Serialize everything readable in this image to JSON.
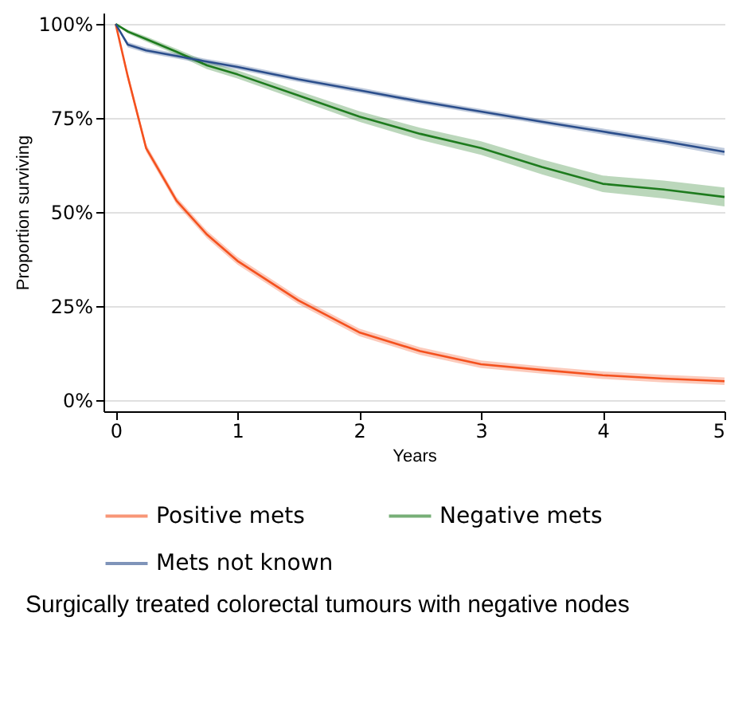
{
  "chart_data": {
    "type": "line",
    "xlabel": "Years",
    "ylabel": "Proportion surviving",
    "x": [
      0,
      0.1,
      0.25,
      0.5,
      0.75,
      1,
      1.5,
      2,
      2.5,
      3,
      3.5,
      4,
      4.5,
      5
    ],
    "series": [
      {
        "name": "Positive mets",
        "color": "#f4511e",
        "values": [
          100,
          86,
          67,
          53,
          44,
          37,
          26.5,
          18,
          13,
          9.5,
          8,
          6.6,
          5.7,
          5
        ],
        "lower": [
          100,
          85,
          66,
          52,
          43,
          36,
          25.5,
          17,
          12,
          8.5,
          7,
          5.6,
          4.7,
          4
        ],
        "upper": [
          100,
          87,
          68,
          54,
          45,
          38,
          27.5,
          19,
          14,
          10.5,
          9,
          7.6,
          6.7,
          6
        ]
      },
      {
        "name": "Negative mets",
        "color": "#1e7b1e",
        "values": [
          100,
          98,
          96,
          92.6,
          89,
          86.6,
          81,
          75.4,
          70.8,
          67,
          62,
          57.5,
          56,
          54
        ],
        "lower": [
          100,
          97.5,
          95.3,
          91.8,
          88,
          85.5,
          79.8,
          74,
          69.2,
          65.2,
          60,
          55.3,
          53.6,
          51.5
        ],
        "upper": [
          100,
          98.5,
          96.7,
          93.4,
          90,
          87.7,
          82.2,
          76.8,
          72.4,
          68.8,
          64,
          59.7,
          58.4,
          56.5
        ]
      },
      {
        "name": "Mets not known",
        "color": "#2b4e8c",
        "values": [
          100,
          94.5,
          93,
          91.5,
          90,
          88.6,
          85.3,
          82.4,
          79.4,
          76.7,
          74,
          71.4,
          68.8,
          66
        ],
        "lower": [
          100,
          93.8,
          92.3,
          90.8,
          89.3,
          87.9,
          84.6,
          81.7,
          78.7,
          76,
          73.3,
          70.6,
          68,
          65
        ],
        "upper": [
          100,
          95.2,
          93.7,
          92.2,
          90.7,
          89.3,
          86,
          83.1,
          80.1,
          77.4,
          74.7,
          72.2,
          69.6,
          67
        ]
      }
    ],
    "xlim": [
      -0.1,
      5
    ],
    "ylim": [
      -3,
      103
    ],
    "xticks": [
      0,
      1,
      2,
      3,
      4,
      5
    ],
    "yticks": [
      {
        "value": 0,
        "label": "0%"
      },
      {
        "value": 25,
        "label": "25%"
      },
      {
        "value": 50,
        "label": "50%"
      },
      {
        "value": 75,
        "label": "75%"
      },
      {
        "value": 100,
        "label": "100%"
      }
    ],
    "grid": "y",
    "legend": "bottom",
    "annotations": [
      "Surgically treated colorectal tumours with negative nodes"
    ]
  }
}
